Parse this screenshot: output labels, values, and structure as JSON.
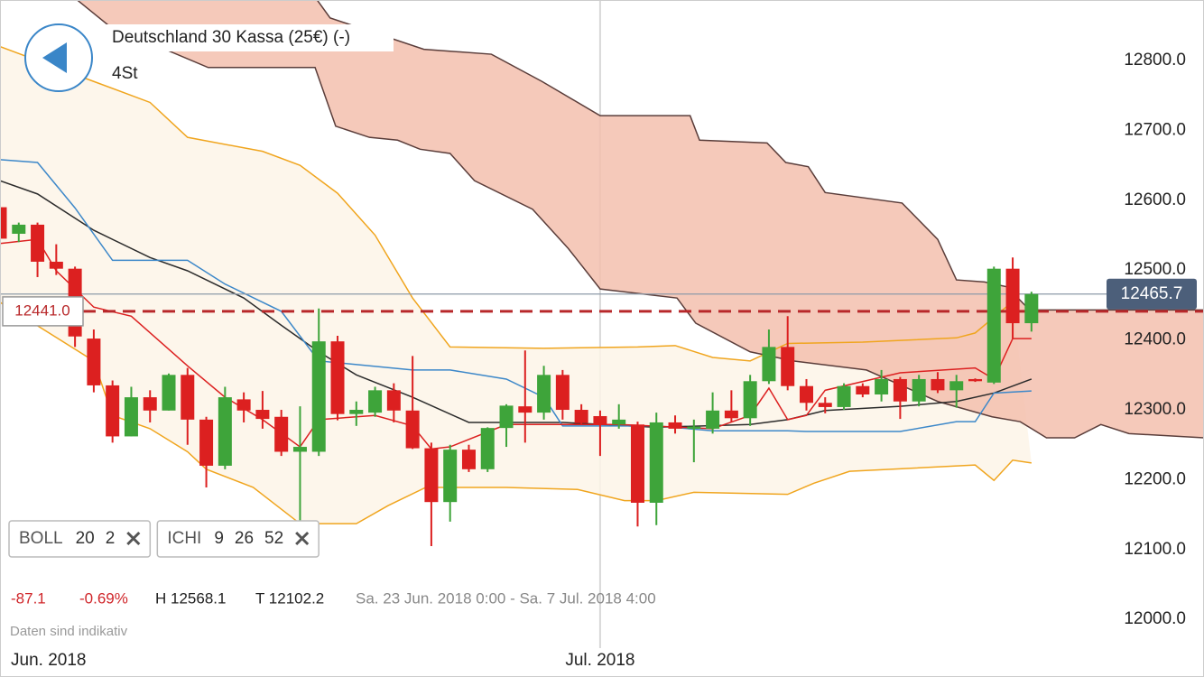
{
  "chart_data": {
    "type": "candlestick",
    "title": "Deutschland 30 Kassa (25€) (-)",
    "subtitle": "4St",
    "xlim": [
      0,
      64.2
    ],
    "ylim": [
      11917.6,
      12886.6
    ],
    "yticks": [
      {
        "value": 12000,
        "label": "12000.0"
      },
      {
        "value": 12100,
        "label": "12100.0"
      },
      {
        "value": 12200,
        "label": "12200.0"
      },
      {
        "value": 12300,
        "label": "12300.0"
      },
      {
        "value": 12400,
        "label": "12400.0"
      },
      {
        "value": 12500,
        "label": "12500.0"
      },
      {
        "value": 12600,
        "label": "12600.0"
      },
      {
        "value": 12700,
        "label": "12700.0"
      },
      {
        "value": 12800,
        "label": "12800.0"
      }
    ],
    "xticks": [
      {
        "value": 0,
        "label": "Jun. 2018"
      },
      {
        "value": 32,
        "label": "Jul. 2018"
      }
    ],
    "up_color": "#3ea43a",
    "down_color": "#dc2020",
    "open": [
      12590,
      12552,
      12565,
      12512,
      12502,
      12402,
      12335,
      12262,
      12318,
      12299,
      12350,
      12286,
      12220,
      12315,
      12300,
      12290,
      12240,
      12240,
      12398,
      12294,
      12296,
      12328,
      12299,
      12245,
      12168,
      12243,
      12215,
      12274,
      12305,
      12296,
      12350,
      12300,
      12291,
      12279,
      12279,
      12167,
      12282,
      12273,
      12273,
      12299,
      12288,
      12341,
      12390,
      12334,
      12310,
      12304,
      12334,
      12322,
      12344,
      12312,
      12344,
      12328,
      12344,
      12339,
      12502,
      12424
    ],
    "high": [
      12595,
      12568,
      12568,
      12537,
      12505,
      12415,
      12342,
      12333,
      12328,
      12352,
      12360,
      12290,
      12333,
      12325,
      12327,
      12300,
      12305,
      12445,
      12406,
      12312,
      12333,
      12338,
      12377,
      12253,
      12250,
      12250,
      12275,
      12308,
      12385,
      12363,
      12357,
      12308,
      12299,
      12308,
      12283,
      12296,
      12292,
      12286,
      12325,
      12328,
      12350,
      12415,
      12434,
      12344,
      12318,
      12338,
      12338,
      12357,
      12347,
      12350,
      12354,
      12350,
      12345,
      12505,
      12518,
      12469
    ],
    "low": [
      12540,
      12540,
      12490,
      12493,
      12390,
      12325,
      12253,
      12262,
      12282,
      12299,
      12250,
      12189,
      12215,
      12282,
      12273,
      12234,
      12124,
      12234,
      12285,
      12277,
      12290,
      12282,
      12244,
      12105,
      12140,
      12211,
      12211,
      12247,
      12253,
      12286,
      12286,
      12279,
      12234,
      12273,
      12133,
      12135,
      12266,
      12225,
      12266,
      12282,
      12277,
      12337,
      12328,
      12299,
      12295,
      12300,
      12318,
      12312,
      12287,
      12305,
      12324,
      12303,
      12340,
      12337,
      12402,
      12412
    ],
    "close": [
      12545,
      12565,
      12512,
      12502,
      12405,
      12335,
      12262,
      12318,
      12299,
      12350,
      12286,
      12220,
      12318,
      12299,
      12287,
      12240,
      12247,
      12398,
      12294,
      12300,
      12328,
      12299,
      12245,
      12168,
      12243,
      12215,
      12274,
      12306,
      12296,
      12350,
      12300,
      12281,
      12279,
      12286,
      12167,
      12282,
      12273,
      12276,
      12299,
      12288,
      12341,
      12390,
      12334,
      12310,
      12304,
      12334,
      12322,
      12344,
      12312,
      12344,
      12328,
      12341,
      12341,
      12502,
      12424,
      12465.7
    ],
    "cloud": {
      "color": "#5a3d3a",
      "fill": "#f3c0ae",
      "upper": {
        "x": [
          4,
          16.9,
          17.6,
          22.6,
          26.2,
          28.9,
          32,
          36.8,
          37.3,
          40.9,
          41.9,
          43.1,
          44,
          48.1,
          50,
          51,
          52.5,
          53.7,
          54.9,
          64.2
        ],
        "values": [
          12950,
          12887,
          12861,
          12816,
          12809,
          12770,
          12721,
          12721,
          12686,
          12682,
          12654,
          12648,
          12611,
          12596,
          12544,
          12486,
          12483,
          12476,
          12443,
          12443
        ]
      },
      "lower": {
        "x": [
          4.1,
          5.8,
          11.1,
          16.8,
          17.9,
          19.7,
          21.2,
          22.4,
          24,
          25.3,
          28.4,
          30.3,
          32,
          36.1,
          37.1,
          40,
          42.3,
          46.2,
          50,
          52.9,
          54.4,
          55.8,
          57.3,
          58.7,
          60.2,
          64.2
        ],
        "values": [
          12887,
          12850,
          12790,
          12790,
          12706,
          12690,
          12686,
          12673,
          12667,
          12628,
          12587,
          12531,
          12473,
          12460,
          12424,
          12383,
          12370,
          12357,
          12312,
          12290,
          12283,
          12260,
          12260,
          12279,
          12266,
          12260
        ]
      }
    },
    "bollinger": {
      "color": "#f0a51e",
      "fill": "#fdf5e8",
      "upper": {
        "x": [
          0,
          3,
          5,
          8,
          10,
          14,
          16,
          18,
          20,
          22,
          24,
          29,
          34,
          36,
          38,
          40,
          42,
          46,
          51,
          52,
          54
        ],
        "values": [
          12820,
          12790,
          12770,
          12740,
          12690,
          12670,
          12650,
          12610,
          12550,
          12460,
          12390,
          12388,
          12390,
          12392,
          12375,
          12370,
          12395,
          12397,
          12403,
          12410,
          12455
        ]
      },
      "lower": {
        "x": [
          0,
          5,
          6,
          8,
          10,
          11,
          13.5,
          16,
          19,
          20.7,
          22.7,
          27,
          30.8,
          33.3,
          35,
          37,
          42,
          43.4,
          45.3,
          52,
          53,
          54,
          55
        ],
        "values": [
          12454,
          12370,
          12292,
          12273,
          12240,
          12215,
          12189,
          12137,
          12137,
          12163,
          12189,
          12189,
          12186,
          12170,
          12170,
          12182,
          12179,
          12195,
          12212,
          12221,
          12199,
          12228,
          12224
        ]
      }
    },
    "lines": [
      {
        "color": "#2b2b2b",
        "x": [
          0,
          2,
          5,
          8,
          10,
          13,
          15,
          17,
          19,
          22,
          25,
          30,
          35,
          40,
          42,
          44,
          48,
          51,
          53,
          55
        ],
        "values": [
          12628,
          12609,
          12557,
          12518,
          12499,
          12460,
          12421,
          12383,
          12350,
          12318,
          12282,
          12282,
          12275,
          12279,
          12286,
          12299,
          12305,
          12312,
          12324,
          12344
        ]
      },
      {
        "color": "#3d88c9",
        "x": [
          0,
          2,
          4,
          6,
          10,
          12,
          15,
          17,
          22,
          24,
          27,
          29,
          30,
          35,
          38,
          42,
          43,
          48,
          51,
          52,
          53,
          55
        ],
        "values": [
          12658,
          12654,
          12589,
          12514,
          12514,
          12480,
          12441,
          12370,
          12357,
          12357,
          12344,
          12318,
          12277,
          12277,
          12270,
          12270,
          12269,
          12269,
          12283,
          12283,
          12324,
          12327
        ]
      },
      {
        "color": "#dc2020",
        "x": [
          0,
          2,
          3,
          5,
          7,
          10,
          12,
          14,
          16,
          17,
          20,
          22,
          23,
          24,
          27,
          33,
          38,
          40,
          41,
          42,
          43,
          44,
          48,
          52,
          53,
          54,
          55
        ],
        "values": [
          12538,
          12544,
          12499,
          12447,
          12434,
          12363,
          12318,
          12286,
          12247,
          12286,
          12292,
          12277,
          12244,
          12247,
          12279,
          12279,
          12273,
          12292,
          12331,
          12286,
          12292,
          12328,
          12353,
          12360,
          12344,
          12402,
          12402
        ]
      }
    ],
    "last_price": 12465.7,
    "last_price_color": "#4c5f7a",
    "marker_price": {
      "value": 12441,
      "label": "12441.0"
    },
    "marker_color": "#b8282a"
  },
  "ui": {
    "indicators": [
      {
        "name": "BOLL",
        "params": [
          "20",
          "2"
        ]
      },
      {
        "name": "ICHI",
        "params": [
          "9",
          "26",
          "52"
        ]
      }
    ],
    "change": "-87.1",
    "change_pct": "-0.69%",
    "high": "H 12568.1",
    "low": "T 12102.2",
    "range": "Sa. 23 Jun. 2018 0:00 - Sa. 7 Jul. 2018 4:00",
    "disclaimer": "Daten sind indikativ"
  }
}
